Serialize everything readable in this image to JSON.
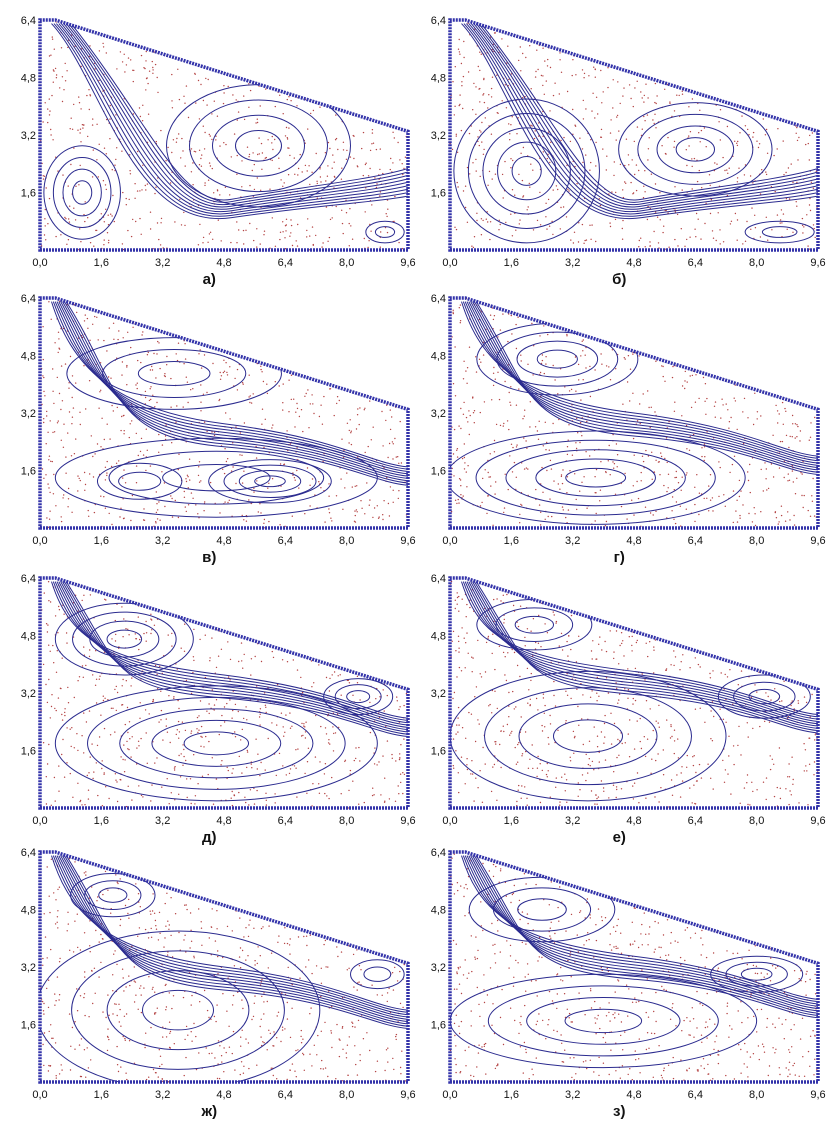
{
  "figure": {
    "axis_ticks": {
      "x": [
        "0,0",
        "1,6",
        "3,2",
        "4,8",
        "6,4",
        "8,0",
        "9,6"
      ],
      "y": [
        "1,6",
        "3,2",
        "4,8",
        "6,4"
      ]
    },
    "colors": {
      "boundary": "#3333aa",
      "streamline": "#2b2b8f",
      "particle": "#b44444",
      "text": "#111111"
    },
    "panels": [
      {
        "caption": "а)",
        "vortices": [
          {
            "x": 1.1,
            "y": 1.6,
            "rx": 1.0,
            "ry": 1.3,
            "rings": 4
          },
          {
            "x": 5.7,
            "y": 2.9,
            "rx": 2.4,
            "ry": 1.7,
            "rings": 4
          },
          {
            "x": 9.0,
            "y": 0.5,
            "rx": 0.5,
            "ry": 0.3,
            "rings": 2
          }
        ]
      },
      {
        "caption": "б)",
        "vortices": [
          {
            "x": 2.0,
            "y": 2.2,
            "rx": 1.9,
            "ry": 2.0,
            "rings": 5
          },
          {
            "x": 6.4,
            "y": 2.8,
            "rx": 2.0,
            "ry": 1.3,
            "rings": 4
          },
          {
            "x": 8.6,
            "y": 0.5,
            "rx": 0.9,
            "ry": 0.3,
            "rings": 2
          }
        ]
      },
      {
        "caption": "в)",
        "vortices": [
          {
            "x": 3.5,
            "y": 4.3,
            "rx": 2.8,
            "ry": 1.0,
            "rings": 3
          },
          {
            "x": 2.6,
            "y": 1.3,
            "rx": 1.1,
            "ry": 0.5,
            "rings": 2
          },
          {
            "x": 6.0,
            "y": 1.3,
            "rx": 1.6,
            "ry": 0.6,
            "rings": 4
          },
          {
            "x": 4.6,
            "y": 1.4,
            "rx": 4.2,
            "ry": 1.1,
            "rings": 3
          }
        ]
      },
      {
        "caption": "г)",
        "vortices": [
          {
            "x": 2.8,
            "y": 4.7,
            "rx": 2.1,
            "ry": 1.0,
            "rings": 4
          },
          {
            "x": 3.8,
            "y": 1.4,
            "rx": 3.9,
            "ry": 1.3,
            "rings": 5
          }
        ]
      },
      {
        "caption": "д)",
        "vortices": [
          {
            "x": 2.2,
            "y": 4.7,
            "rx": 1.8,
            "ry": 1.0,
            "rings": 4
          },
          {
            "x": 8.3,
            "y": 3.1,
            "rx": 0.9,
            "ry": 0.5,
            "rings": 3
          },
          {
            "x": 4.6,
            "y": 1.8,
            "rx": 4.2,
            "ry": 1.6,
            "rings": 5
          }
        ]
      },
      {
        "caption": "е)",
        "vortices": [
          {
            "x": 2.2,
            "y": 5.1,
            "rx": 1.5,
            "ry": 0.7,
            "rings": 3
          },
          {
            "x": 8.2,
            "y": 3.1,
            "rx": 1.2,
            "ry": 0.6,
            "rings": 3
          },
          {
            "x": 3.6,
            "y": 2.0,
            "rx": 3.6,
            "ry": 1.8,
            "rings": 4
          }
        ]
      },
      {
        "caption": "ж)",
        "vortices": [
          {
            "x": 1.9,
            "y": 5.2,
            "rx": 1.1,
            "ry": 0.6,
            "rings": 3
          },
          {
            "x": 8.8,
            "y": 3.0,
            "rx": 0.7,
            "ry": 0.4,
            "rings": 2
          },
          {
            "x": 3.6,
            "y": 2.0,
            "rx": 3.7,
            "ry": 2.2,
            "rings": 4
          }
        ]
      },
      {
        "caption": "з)",
        "vortices": [
          {
            "x": 2.4,
            "y": 4.8,
            "rx": 1.9,
            "ry": 0.9,
            "rings": 3
          },
          {
            "x": 8.0,
            "y": 3.0,
            "rx": 1.2,
            "ry": 0.5,
            "rings": 3
          },
          {
            "x": 4.0,
            "y": 1.7,
            "rx": 4.0,
            "ry": 1.3,
            "rings": 4
          }
        ]
      }
    ]
  }
}
